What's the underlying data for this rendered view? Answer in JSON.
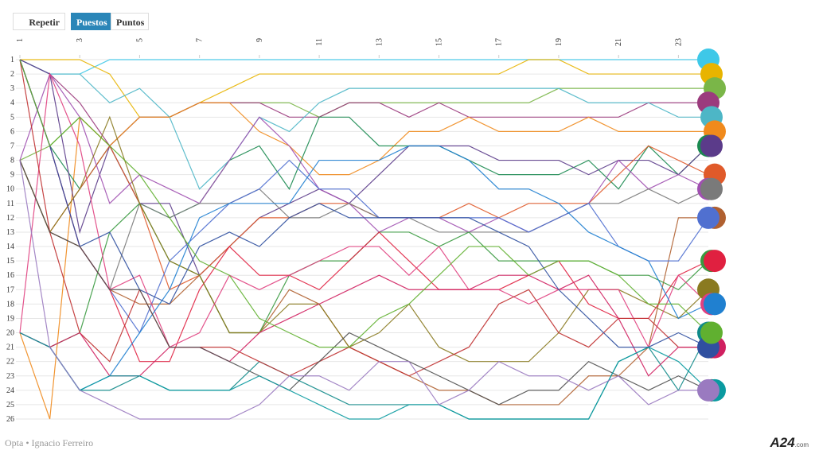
{
  "controls": {
    "replay": "Repetir",
    "positions": "Puestos",
    "points": "Puntos"
  },
  "footer": {
    "source": "Opta  • Ignacio Ferreiro",
    "brand": "A24",
    "brand_suffix": ".com"
  },
  "chart_data": {
    "type": "bump",
    "x": [
      1,
      2,
      3,
      4,
      5,
      6,
      7,
      8,
      9,
      10,
      11,
      12,
      13,
      14,
      15,
      16,
      17,
      18,
      19,
      20,
      21,
      22,
      23,
      24
    ],
    "xlim": [
      1,
      24
    ],
    "xticks": [
      1,
      3,
      5,
      7,
      9,
      11,
      13,
      15,
      17,
      19,
      21,
      23
    ],
    "ylim": [
      1,
      26
    ],
    "yticks": [
      1,
      2,
      3,
      4,
      5,
      6,
      7,
      8,
      9,
      10,
      11,
      12,
      13,
      14,
      15,
      16,
      17,
      18,
      19,
      20,
      21,
      22,
      23,
      24,
      25,
      26
    ],
    "inverted_y": true,
    "grid": true,
    "series": [
      {
        "color": "#3ec8e8",
        "values": [
          1,
          2,
          2,
          1,
          1,
          1,
          1,
          1,
          1,
          1,
          1,
          1,
          1,
          1,
          1,
          1,
          1,
          1,
          1,
          1,
          1,
          1,
          1,
          1
        ]
      },
      {
        "color": "#e8b400",
        "values": [
          1,
          1,
          1,
          2,
          5,
          5,
          4,
          3,
          2,
          2,
          2,
          2,
          2,
          2,
          2,
          2,
          2,
          1,
          1,
          2,
          2,
          2,
          2,
          2
        ]
      },
      {
        "color": "#7ab648",
        "values": [
          8,
          7,
          5,
          7,
          5,
          5,
          4,
          4,
          4,
          4,
          5,
          4,
          4,
          4,
          4,
          4,
          4,
          4,
          3,
          3,
          3,
          3,
          3,
          3
        ]
      },
      {
        "color": "#9b3b7d",
        "values": [
          1,
          2,
          4,
          7,
          5,
          5,
          4,
          4,
          4,
          5,
          5,
          4,
          4,
          5,
          4,
          5,
          5,
          5,
          5,
          5,
          5,
          4,
          4,
          4
        ]
      },
      {
        "color": "#4db6c6",
        "values": [
          1,
          2,
          2,
          4,
          3,
          5,
          10,
          8,
          5,
          6,
          4,
          3,
          3,
          3,
          3,
          3,
          3,
          3,
          3,
          4,
          4,
          4,
          5,
          5
        ]
      },
      {
        "color": "#f08a1c",
        "values": [
          20,
          26,
          5,
          7,
          5,
          5,
          4,
          4,
          6,
          7,
          9,
          9,
          8,
          6,
          6,
          5,
          6,
          6,
          6,
          5,
          6,
          6,
          6,
          6
        ]
      },
      {
        "color": "#1a8a50",
        "values": [
          1,
          7,
          10,
          7,
          11,
          12,
          11,
          8,
          7,
          10,
          5,
          5,
          7,
          7,
          7,
          8,
          9,
          9,
          9,
          8,
          10,
          7,
          9,
          7
        ]
      },
      {
        "color": "#5b3b8a",
        "values": [
          1,
          2,
          13,
          7,
          11,
          11,
          16,
          14,
          12,
          11,
          10,
          11,
          9,
          7,
          7,
          7,
          8,
          8,
          8,
          9,
          8,
          8,
          9,
          7
        ]
      },
      {
        "color": "#e05a2a",
        "values": [
          8,
          13,
          10,
          7,
          11,
          17,
          16,
          14,
          12,
          12,
          11,
          11,
          12,
          12,
          12,
          11,
          12,
          11,
          11,
          11,
          9,
          7,
          8,
          9
        ]
      },
      {
        "color": "#a050b0",
        "values": [
          8,
          2,
          5,
          11,
          9,
          10,
          11,
          8,
          5,
          7,
          10,
          11,
          13,
          12,
          12,
          13,
          12,
          13,
          12,
          11,
          8,
          10,
          9,
          10
        ]
      },
      {
        "color": "#7a7a7a",
        "values": [
          8,
          13,
          14,
          17,
          11,
          12,
          11,
          11,
          10,
          12,
          12,
          11,
          12,
          12,
          13,
          13,
          13,
          13,
          12,
          11,
          11,
          10,
          11,
          10
        ]
      },
      {
        "color": "#b06030",
        "values": [
          8,
          13,
          14,
          17,
          18,
          18,
          16,
          20,
          20,
          17,
          18,
          21,
          22,
          23,
          24,
          24,
          25,
          25,
          25,
          23,
          23,
          21,
          12,
          12
        ]
      },
      {
        "color": "#5070d0",
        "values": [
          1,
          7,
          14,
          17,
          20,
          15,
          13,
          11,
          10,
          8,
          10,
          10,
          12,
          12,
          12,
          12,
          12,
          13,
          12,
          11,
          14,
          15,
          15,
          12
        ]
      },
      {
        "color": "#3a9a40",
        "values": [
          20,
          21,
          20,
          13,
          11,
          15,
          16,
          20,
          20,
          16,
          15,
          15,
          13,
          13,
          14,
          13,
          15,
          15,
          15,
          15,
          16,
          16,
          17,
          15
        ]
      },
      {
        "color": "#e02040",
        "values": [
          1,
          7,
          14,
          17,
          22,
          22,
          17,
          14,
          16,
          16,
          17,
          15,
          13,
          15,
          17,
          17,
          17,
          16,
          15,
          18,
          19,
          19,
          16,
          15
        ]
      },
      {
        "color": "#8a7a20",
        "values": [
          8,
          13,
          10,
          5,
          11,
          15,
          16,
          20,
          20,
          18,
          18,
          21,
          20,
          18,
          21,
          22,
          22,
          22,
          20,
          17,
          17,
          18,
          19,
          17
        ]
      },
      {
        "color": "#e04080",
        "values": [
          20,
          2,
          7,
          17,
          16,
          21,
          20,
          16,
          17,
          16,
          15,
          14,
          14,
          16,
          14,
          17,
          17,
          18,
          17,
          17,
          17,
          21,
          16,
          18
        ]
      },
      {
        "color": "#2080d0",
        "values": [
          20,
          21,
          24,
          23,
          20,
          17,
          12,
          11,
          11,
          11,
          8,
          8,
          8,
          7,
          7,
          8,
          10,
          10,
          11,
          13,
          14,
          15,
          19,
          18
        ]
      },
      {
        "color": "#108a8a",
        "values": [
          20,
          21,
          24,
          24,
          23,
          24,
          24,
          24,
          22,
          23,
          24,
          25,
          25,
          25,
          25,
          26,
          26,
          26,
          26,
          26,
          22,
          21,
          24,
          20
        ]
      },
      {
        "color": "#c03030",
        "values": [
          1,
          13,
          20,
          22,
          17,
          21,
          21,
          21,
          22,
          23,
          22,
          21,
          22,
          23,
          22,
          21,
          18,
          17,
          20,
          21,
          19,
          19,
          21,
          21
        ]
      },
      {
        "color": "#d02060",
        "values": [
          20,
          21,
          20,
          23,
          23,
          21,
          21,
          22,
          20,
          19,
          18,
          17,
          16,
          17,
          17,
          17,
          16,
          16,
          17,
          16,
          19,
          23,
          21,
          21
        ]
      },
      {
        "color": "#3050a0",
        "values": [
          1,
          7,
          14,
          13,
          17,
          18,
          14,
          13,
          14,
          12,
          11,
          12,
          12,
          12,
          12,
          12,
          13,
          14,
          17,
          19,
          21,
          21,
          20,
          21
        ]
      },
      {
        "color": "#505050",
        "values": [
          8,
          13,
          14,
          17,
          17,
          21,
          21,
          22,
          23,
          24,
          22,
          20,
          21,
          22,
          23,
          24,
          25,
          24,
          24,
          22,
          23,
          24,
          23,
          24
        ]
      },
      {
        "color": "#0a9aa0",
        "values": [
          20,
          21,
          24,
          23,
          23,
          24,
          24,
          24,
          23,
          24,
          25,
          26,
          26,
          25,
          25,
          26,
          26,
          26,
          26,
          26,
          22,
          21,
          22,
          24
        ]
      },
      {
        "color": "#9a7ac0",
        "values": [
          8,
          21,
          24,
          25,
          26,
          26,
          26,
          26,
          25,
          23,
          23,
          24,
          22,
          22,
          25,
          24,
          22,
          23,
          23,
          24,
          23,
          25,
          24,
          24
        ]
      },
      {
        "color": "#60b030",
        "values": [
          1,
          7,
          5,
          7,
          9,
          12,
          15,
          16,
          19,
          20,
          21,
          21,
          19,
          18,
          16,
          14,
          14,
          16,
          15,
          15,
          16,
          18,
          18,
          20
        ]
      }
    ]
  }
}
